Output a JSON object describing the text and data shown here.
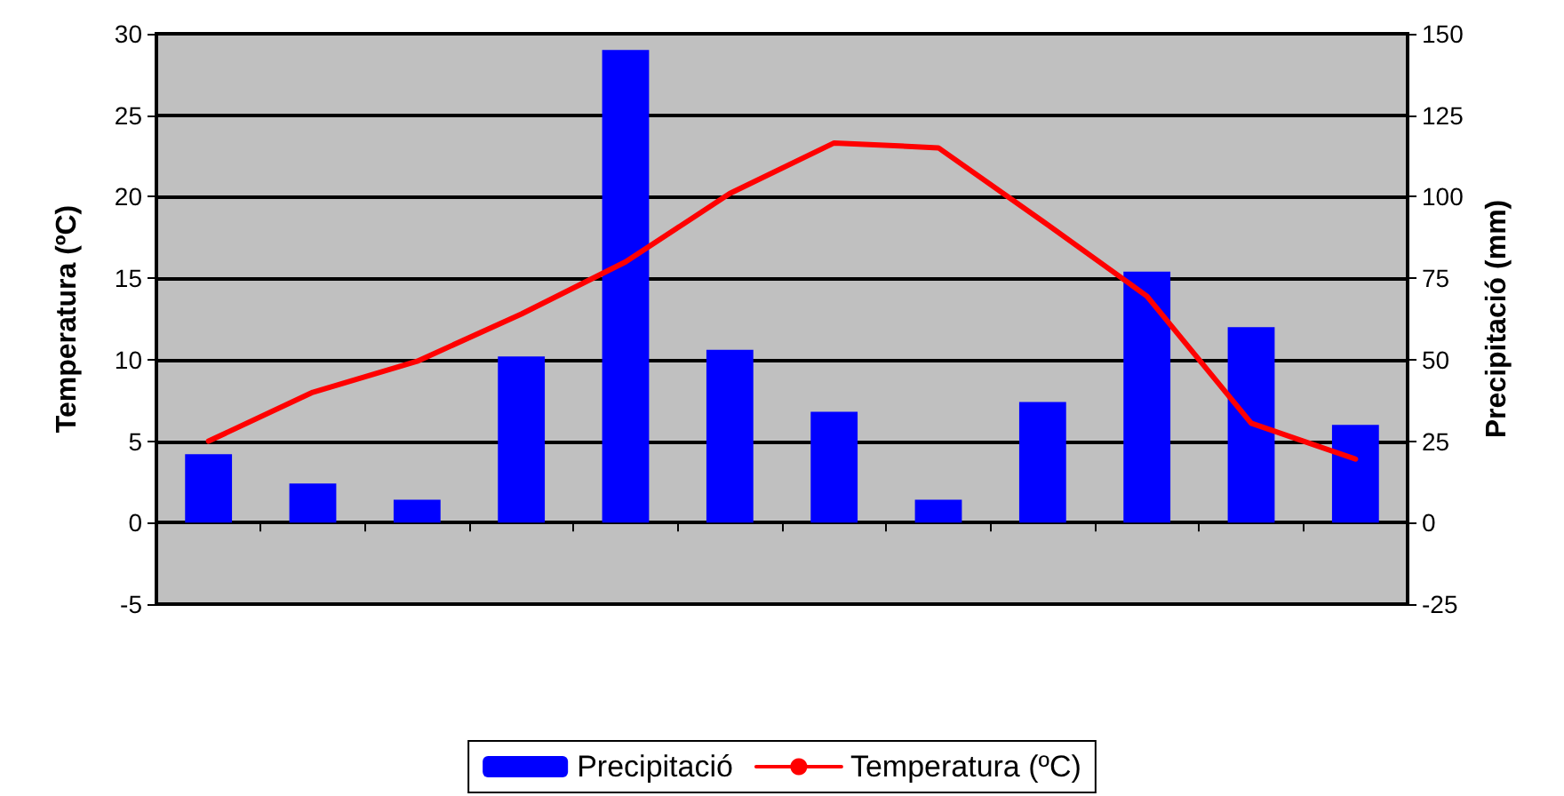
{
  "chart_data": {
    "type": "bar",
    "ylabel": "Temperatura (ºC)",
    "y2label": "Precipitació (mm)",
    "categories": [
      null,
      null,
      null,
      null,
      null,
      null,
      null,
      null,
      null,
      null,
      null,
      null
    ],
    "series": [
      {
        "name": "Precipitació",
        "axis": "y2",
        "color": "#0000ff",
        "values": [
          21,
          12,
          7,
          51,
          145,
          53,
          34,
          7,
          37,
          77,
          60,
          30
        ]
      },
      {
        "name": "Temperatura (ºC)",
        "type": "line",
        "color": "#ff0000",
        "values": [
          5.0,
          8.0,
          9.9,
          12.8,
          16.0,
          20.2,
          23.3,
          23.0,
          18.5,
          13.9,
          6.1,
          3.9
        ]
      }
    ],
    "ylim": [
      -5,
      30
    ],
    "yticks": [
      -5,
      0,
      5,
      10,
      15,
      20,
      25,
      30
    ],
    "y2lim": [
      -25,
      150
    ],
    "y2ticks": [
      -25,
      0,
      25,
      50,
      75,
      100,
      125,
      150
    ],
    "grid": "y",
    "legend": "bottom",
    "marker": "none",
    "line_style": "solid"
  }
}
